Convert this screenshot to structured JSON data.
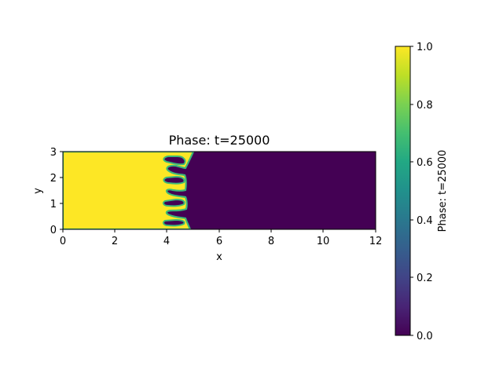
{
  "chart_data": {
    "type": "heatmap",
    "title": "Phase: t=25000",
    "xlabel": "x",
    "ylabel": "y",
    "xlim": [
      0,
      12
    ],
    "ylim": [
      0,
      3
    ],
    "xticks": [
      "0",
      "2",
      "4",
      "6",
      "8",
      "10",
      "12"
    ],
    "yticks": [
      "0",
      "1",
      "2",
      "3"
    ],
    "colormap": "viridis",
    "color_low": "#440154",
    "color_high": "#fde725",
    "phase_high_region": "x < ~4.0",
    "phase_low_region": "x > ~4.9",
    "interface_fingers": [
      {
        "y": 0.35,
        "tip_x": 3.9,
        "root_x": 4.8
      },
      {
        "y": 0.95,
        "tip_x": 4.0,
        "root_x": 4.8
      },
      {
        "y": 1.6,
        "tip_x": 3.9,
        "root_x": 4.8
      },
      {
        "y": 2.3,
        "tip_x": 4.0,
        "root_x": 4.8
      },
      {
        "y": 2.75,
        "tip_x": 3.9,
        "root_x": 4.9
      }
    ],
    "colorbar": {
      "label": "Phase: t=25000",
      "range": [
        0.0,
        1.0
      ],
      "ticks": [
        "0.0",
        "0.2",
        "0.4",
        "0.6",
        "0.8",
        "1.0"
      ]
    }
  }
}
